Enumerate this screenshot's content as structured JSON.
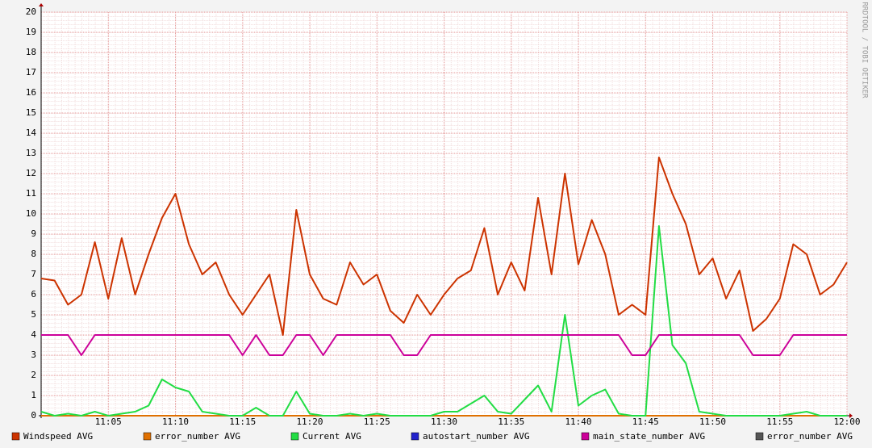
{
  "chart_data": {
    "type": "line",
    "watermark": "RRDTOOL / TOBI OETIKER",
    "x": [
      "11:00",
      "11:01",
      "11:02",
      "11:03",
      "11:04",
      "11:05",
      "11:06",
      "11:07",
      "11:08",
      "11:09",
      "11:10",
      "11:11",
      "11:12",
      "11:13",
      "11:14",
      "11:15",
      "11:16",
      "11:17",
      "11:18",
      "11:19",
      "11:20",
      "11:21",
      "11:22",
      "11:23",
      "11:24",
      "11:25",
      "11:26",
      "11:27",
      "11:28",
      "11:29",
      "11:30",
      "11:31",
      "11:32",
      "11:33",
      "11:34",
      "11:35",
      "11:36",
      "11:37",
      "11:38",
      "11:39",
      "11:40",
      "11:41",
      "11:42",
      "11:43",
      "11:44",
      "11:45",
      "11:46",
      "11:47",
      "11:48",
      "11:49",
      "11:50",
      "11:51",
      "11:52",
      "11:53",
      "11:54",
      "11:55",
      "11:56",
      "11:57",
      "11:58",
      "11:59",
      "12:00"
    ],
    "xlim": [
      "11:00",
      "12:00"
    ],
    "xticks": [
      "11:05",
      "11:10",
      "11:15",
      "11:20",
      "11:25",
      "11:30",
      "11:35",
      "11:40",
      "11:45",
      "11:50",
      "11:55",
      "12:00"
    ],
    "ylim": [
      0,
      20
    ],
    "yticks": [
      0,
      1,
      2,
      3,
      4,
      5,
      6,
      7,
      8,
      9,
      10,
      11,
      12,
      13,
      14,
      15,
      16,
      17,
      18,
      19,
      20
    ],
    "grid": true,
    "series": [
      {
        "name": "Windspeed AVG",
        "color": "#cc3300",
        "values": [
          6.8,
          6.7,
          5.5,
          6.0,
          8.6,
          5.8,
          8.8,
          6.0,
          8.0,
          9.8,
          11.0,
          8.5,
          7.0,
          7.6,
          6.0,
          5.0,
          6.0,
          7.0,
          4.0,
          10.2,
          7.0,
          5.8,
          5.5,
          7.6,
          6.5,
          7.0,
          5.2,
          4.6,
          6.0,
          5.0,
          6.0,
          6.8,
          7.2,
          9.3,
          6.0,
          7.6,
          6.2,
          10.8,
          7.0,
          12.0,
          7.5,
          9.7,
          8.0,
          5.0,
          5.5,
          5.0,
          12.8,
          11.0,
          9.5,
          7.0,
          7.8,
          5.8,
          7.2,
          4.2,
          4.8,
          5.8,
          8.5,
          8.0,
          6.0,
          6.5,
          7.6
        ]
      },
      {
        "name": "error_number AVG",
        "color": "#e07000",
        "values": [
          0,
          0,
          0,
          0,
          0,
          0,
          0,
          0,
          0,
          0,
          0,
          0,
          0,
          0,
          0,
          0,
          0,
          0,
          0,
          0,
          0,
          0,
          0,
          0,
          0,
          0,
          0,
          0,
          0,
          0,
          0,
          0,
          0,
          0,
          0,
          0,
          0,
          0,
          0,
          0,
          0,
          0,
          0,
          0,
          0,
          0,
          0,
          0,
          0,
          0,
          0,
          0,
          0,
          0,
          0,
          0,
          0,
          0,
          0,
          0,
          0
        ]
      },
      {
        "name": "Current AVG",
        "color": "#22dd44",
        "values": [
          0.2,
          0,
          0.1,
          0,
          0.2,
          0,
          0.1,
          0.2,
          0.5,
          1.8,
          1.4,
          1.2,
          0.2,
          0.1,
          0,
          0,
          0.4,
          0,
          0,
          1.2,
          0.1,
          0,
          0,
          0.1,
          0,
          0.1,
          0,
          0,
          0,
          0,
          0.2,
          0.2,
          0.6,
          1.0,
          0.2,
          0.1,
          0.8,
          1.5,
          0.2,
          5.0,
          0.5,
          1.0,
          1.3,
          0.1,
          0,
          0,
          9.4,
          3.5,
          2.6,
          0.2,
          0.1,
          0,
          0,
          0,
          0,
          0,
          0.1,
          0.2,
          0,
          0,
          0
        ]
      },
      {
        "name": "autostart_number AVG",
        "color": "#2222cc",
        "values": [
          0,
          0,
          0,
          0,
          0,
          0,
          0,
          0,
          0,
          0,
          0,
          0,
          0,
          0,
          0,
          0,
          0,
          0,
          0,
          0,
          0,
          0,
          0,
          0,
          0,
          0,
          0,
          0,
          0,
          0,
          0,
          0,
          0,
          0,
          0,
          0,
          0,
          0,
          0,
          0,
          0,
          0,
          0,
          0,
          0,
          0,
          0,
          0,
          0,
          0,
          0,
          0,
          0,
          0,
          0,
          0,
          0,
          0,
          0,
          0,
          0
        ]
      },
      {
        "name": "main_state_number AVG",
        "color": "#cc0099",
        "values": [
          4,
          4,
          4,
          3,
          4,
          4,
          4,
          4,
          4,
          4,
          4,
          4,
          4,
          4,
          4,
          3,
          4,
          3,
          3,
          4,
          4,
          3,
          4,
          4,
          4,
          4,
          4,
          3,
          3,
          4,
          4,
          4,
          4,
          4,
          4,
          4,
          4,
          4,
          4,
          4,
          4,
          4,
          4,
          4,
          3,
          3,
          4,
          4,
          4,
          4,
          4,
          4,
          4,
          3,
          3,
          3,
          4,
          4,
          4,
          4,
          4
        ]
      },
      {
        "name": "error_number AVG",
        "color": "#555555",
        "values": [
          0,
          0,
          0,
          0,
          0,
          0,
          0,
          0,
          0,
          0,
          0,
          0,
          0,
          0,
          0,
          0,
          0,
          0,
          0,
          0,
          0,
          0,
          0,
          0,
          0,
          0,
          0,
          0,
          0,
          0,
          0,
          0,
          0,
          0,
          0,
          0,
          0,
          0,
          0,
          0,
          0,
          0,
          0,
          0,
          0,
          0,
          0,
          0,
          0,
          0,
          0,
          0,
          0,
          0,
          0,
          0,
          0,
          0,
          0,
          0,
          0
        ]
      }
    ]
  }
}
